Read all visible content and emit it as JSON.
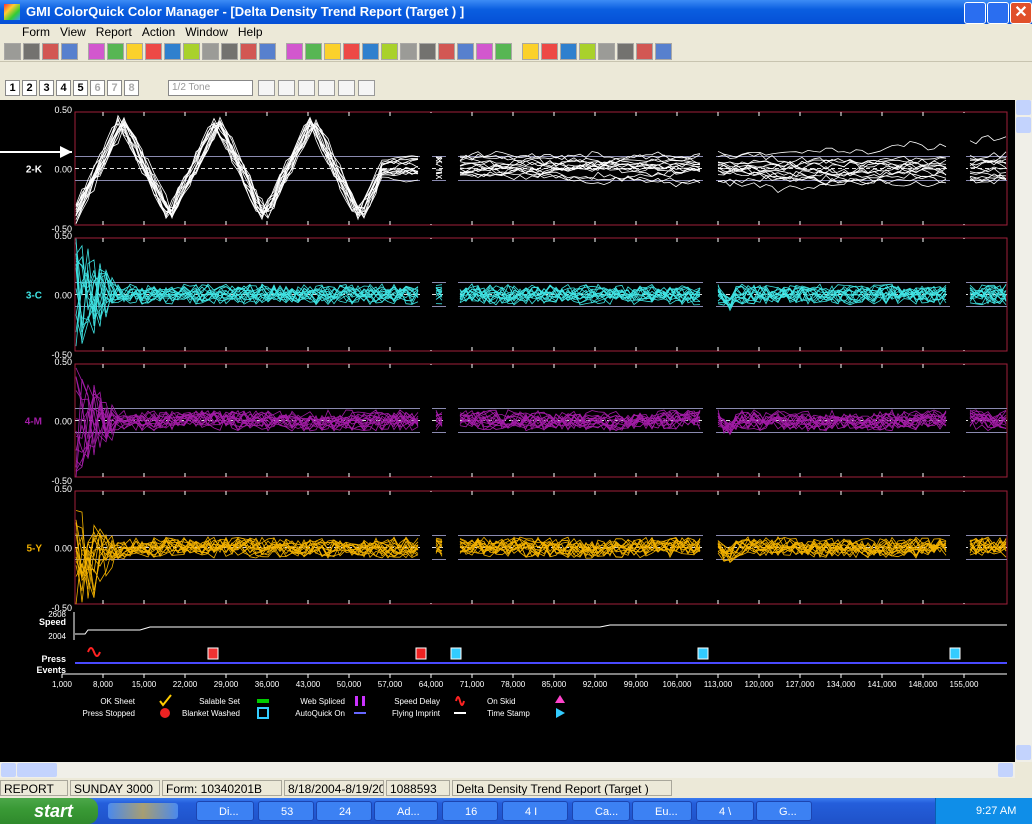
{
  "window": {
    "title": "GMI ColorQuick Color Manager - [Delta Density Trend Report (Target ) ]",
    "menu": [
      "Form",
      "View",
      "Report",
      "Action",
      "Window",
      "Help"
    ]
  },
  "toolbar": {
    "tabs": [
      "1",
      "2",
      "3",
      "4",
      "5",
      "6",
      "7",
      "8"
    ],
    "dropdown": "1/2 Tone"
  },
  "report": {
    "panels": [
      {
        "label": "2-K",
        "color": "#ffffff",
        "tick_labels": [
          "0.50",
          "0.00",
          "-0.50"
        ]
      },
      {
        "label": "3-C",
        "color": "#3fe3e3",
        "tick_labels": [
          "0.50",
          "0.00",
          "-0.50"
        ]
      },
      {
        "label": "4-M",
        "color": "#a21ca6",
        "tick_labels": [
          "0.50",
          "0.00",
          "-0.50"
        ]
      },
      {
        "label": "5-Y",
        "color": "#f2b100",
        "tick_labels": [
          "0.50",
          "0.00",
          "-0.50"
        ]
      }
    ],
    "speed": {
      "label": "Speed",
      "max_label": "2608",
      "min_label": "2004"
    },
    "events": {
      "line1": "Press",
      "line2": "Events"
    },
    "x_labels": [
      "1,000",
      "8,000",
      "15,000",
      "22,000",
      "29,000",
      "36,000",
      "43,000",
      "50,000",
      "57,000",
      "64,000",
      "71,000",
      "78,000",
      "85,000",
      "92,000",
      "99,000",
      "106,000",
      "113,000",
      "120,000",
      "127,000",
      "134,000",
      "141,000",
      "148,000",
      "155,000"
    ],
    "legend": [
      "OK Sheet",
      "Salable Set",
      "Web Spliced",
      "Speed Delay",
      "On Skid",
      "Press Stopped",
      "Blanket Washed",
      "AutoQuick On",
      "Flying Imprint",
      "Time Stamp"
    ]
  },
  "status_bar": [
    "REPORT",
    "SUNDAY 3000",
    "Form: 10340201B",
    "8/18/2004-8/19/20(",
    "1088593",
    "Delta Density Trend Report (Target )"
  ],
  "taskbar": {
    "start": "start",
    "items": [
      "Di...",
      "53",
      "24",
      "Ad...",
      "16",
      "4 I",
      "Ca...",
      "Eu...",
      "4 \\",
      "G..."
    ],
    "clock": "9:27 AM"
  }
}
